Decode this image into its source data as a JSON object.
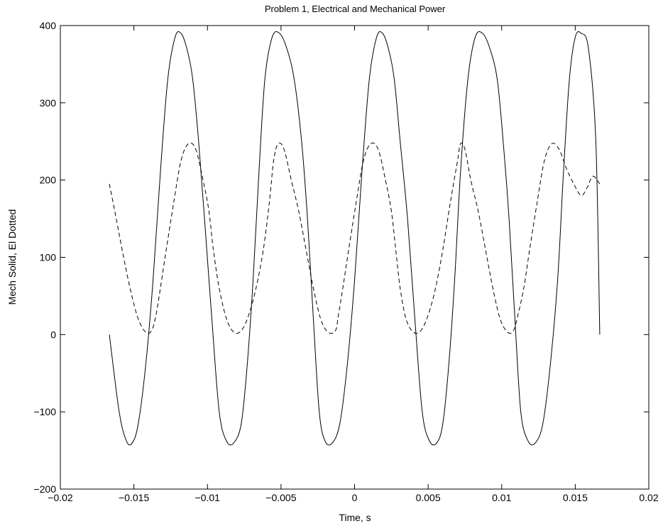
{
  "chart_data": {
    "type": "line",
    "title": "Problem 1, Electrical and Mechanical Power",
    "xlabel": "Time, s",
    "ylabel": "Mech Solid, El Dotted",
    "xlim": [
      -0.02,
      0.02
    ],
    "ylim": [
      -200,
      400
    ],
    "x_ticks": [
      -0.02,
      -0.015,
      -0.01,
      -0.005,
      0,
      0.005,
      0.01,
      0.015,
      0.02
    ],
    "x_tick_labels": [
      "−0.02",
      "−0.015",
      "−0.01",
      "−0.005",
      "0",
      "0.005",
      "0.01",
      "0.015",
      "0.02"
    ],
    "y_ticks": [
      -200,
      -100,
      0,
      100,
      200,
      300,
      400
    ],
    "y_tick_labels": [
      "−200",
      "−100",
      "0",
      "100",
      "200",
      "300",
      "400"
    ],
    "grid": false,
    "series": [
      {
        "style": "solid",
        "color": "#000000",
        "x": [
          -0.016667,
          -0.016,
          -0.0155,
          -0.0151,
          -0.0147,
          -0.0142,
          -0.0137,
          -0.0132,
          -0.0127,
          -0.0122,
          -0.0118,
          -0.0114,
          -0.011,
          -0.0106,
          -0.0102,
          -0.0097,
          -0.0092,
          -0.0087,
          -0.0082,
          -0.0077,
          -0.0073,
          -0.0069,
          -0.0065,
          -0.0061,
          -0.0056,
          -0.0051,
          -0.0046,
          -0.0041,
          -0.0036,
          -0.0032,
          -0.0028,
          -0.0024,
          -0.002,
          -0.0015,
          -0.001,
          -0.0005,
          0.0,
          0.0005,
          0.001,
          0.0015,
          0.0019,
          0.0023,
          0.0027,
          0.0031,
          0.0036,
          0.0041,
          0.0046,
          0.0051,
          0.0056,
          0.006,
          0.0064,
          0.0068,
          0.0072,
          0.0077,
          0.0082,
          0.0087,
          0.0092,
          0.0097,
          0.0101,
          0.0105,
          0.0109,
          0.0113,
          0.0118,
          0.0123,
          0.0128,
          0.0133,
          0.0138,
          0.0142,
          0.0146,
          0.015,
          0.0154,
          0.0159,
          0.0164,
          0.016667
        ],
        "y": [
          0,
          -100,
          -138,
          -140,
          -115,
          -40,
          70,
          210,
          330,
          385,
          390,
          370,
          330,
          250,
          150,
          20,
          -100,
          -138,
          -140,
          -115,
          -40,
          70,
          210,
          330,
          385,
          390,
          370,
          330,
          250,
          150,
          20,
          -100,
          -138,
          -140,
          -115,
          -40,
          70,
          210,
          330,
          385,
          390,
          370,
          330,
          250,
          150,
          20,
          -100,
          -138,
          -140,
          -115,
          -40,
          70,
          210,
          330,
          385,
          390,
          370,
          330,
          250,
          150,
          20,
          -100,
          -138,
          -140,
          -115,
          -40,
          70,
          210,
          330,
          385,
          390,
          370,
          250,
          0
        ]
      },
      {
        "style": "dashed",
        "color": "#000000",
        "x": [
          -0.016667,
          -0.0162,
          -0.0157,
          -0.0152,
          -0.0147,
          -0.0142,
          -0.0138,
          -0.0135,
          -0.0132,
          -0.0128,
          -0.0123,
          -0.0118,
          -0.0113,
          -0.0108,
          -0.0103,
          -0.0099,
          -0.0096,
          -0.0092,
          -0.0087,
          -0.0082,
          -0.0077,
          -0.0072,
          -0.0067,
          -0.0062,
          -0.0058,
          -0.0055,
          -0.0052,
          -0.0048,
          -0.0043,
          -0.0038,
          -0.0033,
          -0.0028,
          -0.0023,
          -0.0018,
          -0.0013,
          -0.0011,
          -0.0008,
          -0.0004,
          0.0001,
          0.0006,
          0.0011,
          0.0016,
          0.0021,
          0.0025,
          0.0028,
          0.0031,
          0.0035,
          0.004,
          0.0045,
          0.005,
          0.0055,
          0.006,
          0.0065,
          0.007,
          0.0072,
          0.0075,
          0.0079,
          0.0084,
          0.0089,
          0.0094,
          0.0099,
          0.0104,
          0.0108,
          0.0111,
          0.0115,
          0.0119,
          0.0124,
          0.0129,
          0.0134,
          0.0139,
          0.0144,
          0.0149,
          0.0154,
          0.0158,
          0.0162,
          0.016667
        ],
        "y": [
          195,
          150,
          100,
          55,
          20,
          3,
          5,
          25,
          60,
          110,
          170,
          225,
          247,
          240,
          200,
          160,
          110,
          60,
          20,
          3,
          5,
          25,
          60,
          110,
          170,
          225,
          247,
          240,
          200,
          160,
          110,
          60,
          20,
          3,
          5,
          25,
          60,
          110,
          170,
          225,
          247,
          240,
          200,
          160,
          110,
          60,
          20,
          3,
          5,
          25,
          60,
          110,
          170,
          225,
          247,
          240,
          200,
          160,
          110,
          60,
          20,
          3,
          5,
          25,
          60,
          110,
          170,
          225,
          247,
          240,
          215,
          195,
          180,
          190,
          205,
          195
        ]
      }
    ]
  }
}
